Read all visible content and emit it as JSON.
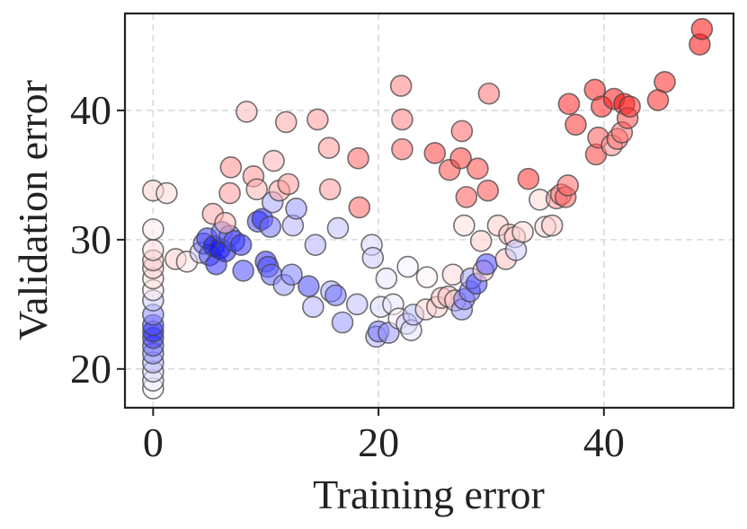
{
  "chart_data": {
    "type": "scatter",
    "title": "",
    "xlabel": "Training error",
    "ylabel": "Validation error",
    "xlim": [
      -2.5,
      51.5
    ],
    "ylim": [
      17,
      47.5
    ],
    "xticks": [
      0,
      20,
      40
    ],
    "yticks": [
      20,
      30,
      40
    ],
    "grid": true,
    "legend": "none",
    "color_scale": {
      "low": "#0000ff",
      "mid": "#ffffff",
      "high": "#ff0000"
    },
    "points": [
      {
        "x": 0,
        "y": 18.5,
        "c": -0.02
      },
      {
        "x": 0,
        "y": 19.1,
        "c": -0.08
      },
      {
        "x": 0,
        "y": 19.8,
        "c": -0.15
      },
      {
        "x": 0,
        "y": 20.5,
        "c": -0.28
      },
      {
        "x": 0,
        "y": 21.2,
        "c": -0.4
      },
      {
        "x": 0,
        "y": 21.8,
        "c": -0.55
      },
      {
        "x": 0,
        "y": 22.4,
        "c": -0.75
      },
      {
        "x": 0,
        "y": 22.9,
        "c": -0.85
      },
      {
        "x": 0,
        "y": 23.4,
        "c": -0.7
      },
      {
        "x": 0,
        "y": 24.2,
        "c": -0.45
      },
      {
        "x": 0,
        "y": 25.3,
        "c": -0.2
      },
      {
        "x": 0,
        "y": 26.1,
        "c": 0.08
      },
      {
        "x": 0,
        "y": 27.0,
        "c": 0.12
      },
      {
        "x": 0,
        "y": 27.8,
        "c": 0.16
      },
      {
        "x": 0,
        "y": 28.4,
        "c": 0.2
      },
      {
        "x": 0,
        "y": 29.2,
        "c": 0.14
      },
      {
        "x": 0,
        "y": 30.8,
        "c": 0.08
      },
      {
        "x": 0,
        "y": 33.8,
        "c": 0.18
      },
      {
        "x": 1.2,
        "y": 33.6,
        "c": 0.14
      },
      {
        "x": 2.0,
        "y": 28.5,
        "c": 0.2
      },
      {
        "x": 3.0,
        "y": 28.3,
        "c": 0.1
      },
      {
        "x": 4.2,
        "y": 29.0,
        "c": -0.2
      },
      {
        "x": 4.5,
        "y": 29.7,
        "c": -0.55
      },
      {
        "x": 4.8,
        "y": 30.1,
        "c": -0.75
      },
      {
        "x": 5.0,
        "y": 28.8,
        "c": -0.7
      },
      {
        "x": 5.4,
        "y": 29.5,
        "c": -0.9
      },
      {
        "x": 5.6,
        "y": 28.1,
        "c": -0.8
      },
      {
        "x": 5.9,
        "y": 29.3,
        "c": -0.95
      },
      {
        "x": 6.1,
        "y": 30.6,
        "c": -0.65
      },
      {
        "x": 6.4,
        "y": 29.1,
        "c": -0.85
      },
      {
        "x": 6.8,
        "y": 30.3,
        "c": -0.6
      },
      {
        "x": 7.2,
        "y": 29.9,
        "c": -0.7
      },
      {
        "x": 7.8,
        "y": 29.6,
        "c": -0.8
      },
      {
        "x": 8.0,
        "y": 27.6,
        "c": -0.7
      },
      {
        "x": 5.3,
        "y": 32.0,
        "c": 0.35
      },
      {
        "x": 6.4,
        "y": 31.3,
        "c": 0.3
      },
      {
        "x": 6.8,
        "y": 33.6,
        "c": 0.4
      },
      {
        "x": 6.9,
        "y": 35.6,
        "c": 0.45
      },
      {
        "x": 8.3,
        "y": 39.9,
        "c": 0.28
      },
      {
        "x": 8.9,
        "y": 34.9,
        "c": 0.42
      },
      {
        "x": 9.2,
        "y": 33.9,
        "c": 0.3
      },
      {
        "x": 9.3,
        "y": 31.4,
        "c": -0.7
      },
      {
        "x": 9.7,
        "y": 31.6,
        "c": -0.85
      },
      {
        "x": 10.0,
        "y": 28.3,
        "c": -0.8
      },
      {
        "x": 10.2,
        "y": 27.9,
        "c": -0.7
      },
      {
        "x": 10.4,
        "y": 31.0,
        "c": -0.55
      },
      {
        "x": 10.6,
        "y": 32.9,
        "c": -0.35
      },
      {
        "x": 10.5,
        "y": 27.3,
        "c": -0.6
      },
      {
        "x": 10.7,
        "y": 36.1,
        "c": 0.3
      },
      {
        "x": 11.2,
        "y": 33.8,
        "c": 0.35
      },
      {
        "x": 11.6,
        "y": 26.5,
        "c": -0.4
      },
      {
        "x": 11.8,
        "y": 39.1,
        "c": 0.35
      },
      {
        "x": 12.0,
        "y": 34.3,
        "c": 0.4
      },
      {
        "x": 12.3,
        "y": 27.3,
        "c": -0.5
      },
      {
        "x": 12.4,
        "y": 31.1,
        "c": -0.3
      },
      {
        "x": 12.7,
        "y": 32.4,
        "c": -0.4
      },
      {
        "x": 13.8,
        "y": 26.4,
        "c": -0.7
      },
      {
        "x": 14.2,
        "y": 24.8,
        "c": -0.3
      },
      {
        "x": 14.4,
        "y": 29.6,
        "c": -0.3
      },
      {
        "x": 14.6,
        "y": 39.3,
        "c": 0.4
      },
      {
        "x": 15.6,
        "y": 37.1,
        "c": 0.4
      },
      {
        "x": 15.7,
        "y": 33.9,
        "c": 0.4
      },
      {
        "x": 15.8,
        "y": 26.0,
        "c": -0.35
      },
      {
        "x": 16.2,
        "y": 25.7,
        "c": -0.55
      },
      {
        "x": 16.4,
        "y": 30.9,
        "c": -0.25
      },
      {
        "x": 16.8,
        "y": 23.6,
        "c": -0.4
      },
      {
        "x": 18.2,
        "y": 36.3,
        "c": 0.6
      },
      {
        "x": 18.3,
        "y": 32.5,
        "c": 0.6
      },
      {
        "x": 18.1,
        "y": 25.0,
        "c": -0.25
      },
      {
        "x": 19.4,
        "y": 29.6,
        "c": -0.15
      },
      {
        "x": 19.5,
        "y": 28.6,
        "c": -0.2
      },
      {
        "x": 19.8,
        "y": 22.5,
        "c": -0.3
      },
      {
        "x": 20.0,
        "y": 22.9,
        "c": -0.55
      },
      {
        "x": 20.2,
        "y": 24.8,
        "c": -0.15
      },
      {
        "x": 20.9,
        "y": 22.8,
        "c": -0.4
      },
      {
        "x": 20.7,
        "y": 27.0,
        "c": -0.1
      },
      {
        "x": 21.3,
        "y": 25.0,
        "c": -0.1
      },
      {
        "x": 21.8,
        "y": 23.9,
        "c": 0.05
      },
      {
        "x": 22.0,
        "y": 41.9,
        "c": 0.5
      },
      {
        "x": 22.1,
        "y": 39.3,
        "c": 0.5
      },
      {
        "x": 22.1,
        "y": 37.0,
        "c": 0.6
      },
      {
        "x": 22.5,
        "y": 23.5,
        "c": -0.2
      },
      {
        "x": 22.6,
        "y": 27.9,
        "c": -0.05
      },
      {
        "x": 22.9,
        "y": 23.0,
        "c": -0.1
      },
      {
        "x": 23.1,
        "y": 24.2,
        "c": -0.25
      },
      {
        "x": 24.3,
        "y": 27.1,
        "c": 0.05
      },
      {
        "x": 24.2,
        "y": 24.6,
        "c": 0.15
      },
      {
        "x": 25.0,
        "y": 36.7,
        "c": 0.75
      },
      {
        "x": 25.2,
        "y": 24.8,
        "c": 0.2
      },
      {
        "x": 25.6,
        "y": 25.5,
        "c": 0.2
      },
      {
        "x": 26.2,
        "y": 25.6,
        "c": 0.25
      },
      {
        "x": 26.3,
        "y": 35.4,
        "c": 0.7
      },
      {
        "x": 26.6,
        "y": 27.3,
        "c": 0.15
      },
      {
        "x": 26.8,
        "y": 25.3,
        "c": 0.2
      },
      {
        "x": 27.3,
        "y": 36.3,
        "c": 0.75
      },
      {
        "x": 27.4,
        "y": 38.4,
        "c": 0.6
      },
      {
        "x": 27.4,
        "y": 24.6,
        "c": -0.4
      },
      {
        "x": 27.6,
        "y": 25.4,
        "c": -0.5
      },
      {
        "x": 27.8,
        "y": 33.3,
        "c": 0.65
      },
      {
        "x": 27.6,
        "y": 31.1,
        "c": 0.12
      },
      {
        "x": 28.1,
        "y": 26.0,
        "c": -0.55
      },
      {
        "x": 28.2,
        "y": 27.0,
        "c": -0.35
      },
      {
        "x": 28.7,
        "y": 26.6,
        "c": -0.7
      },
      {
        "x": 28.8,
        "y": 35.5,
        "c": 0.7
      },
      {
        "x": 29.1,
        "y": 29.9,
        "c": 0.2
      },
      {
        "x": 29.3,
        "y": 27.6,
        "c": 0.2
      },
      {
        "x": 29.6,
        "y": 28.1,
        "c": -0.7
      },
      {
        "x": 29.7,
        "y": 33.8,
        "c": 0.7
      },
      {
        "x": 29.8,
        "y": 41.3,
        "c": 0.55
      },
      {
        "x": 30.6,
        "y": 31.1,
        "c": 0.2
      },
      {
        "x": 31.3,
        "y": 28.5,
        "c": 0.25
      },
      {
        "x": 31.6,
        "y": 30.4,
        "c": 0.25
      },
      {
        "x": 32.1,
        "y": 30.2,
        "c": 0.2
      },
      {
        "x": 32.2,
        "y": 29.2,
        "c": -0.2
      },
      {
        "x": 32.8,
        "y": 30.6,
        "c": 0.15
      },
      {
        "x": 33.3,
        "y": 34.7,
        "c": 0.8
      },
      {
        "x": 34.3,
        "y": 33.1,
        "c": 0.15
      },
      {
        "x": 34.8,
        "y": 31.0,
        "c": 0.15
      },
      {
        "x": 35.4,
        "y": 31.1,
        "c": 0.2
      },
      {
        "x": 35.8,
        "y": 33.2,
        "c": 0.4
      },
      {
        "x": 36.2,
        "y": 33.5,
        "c": 0.5
      },
      {
        "x": 36.6,
        "y": 33.3,
        "c": 0.6
      },
      {
        "x": 36.8,
        "y": 34.2,
        "c": 0.6
      },
      {
        "x": 36.9,
        "y": 40.5,
        "c": 0.85
      },
      {
        "x": 37.5,
        "y": 38.9,
        "c": 0.8
      },
      {
        "x": 39.2,
        "y": 41.6,
        "c": 0.85
      },
      {
        "x": 39.3,
        "y": 36.6,
        "c": 0.75
      },
      {
        "x": 39.5,
        "y": 37.9,
        "c": 0.65
      },
      {
        "x": 39.8,
        "y": 40.3,
        "c": 0.85
      },
      {
        "x": 40.7,
        "y": 37.3,
        "c": 0.45
      },
      {
        "x": 40.9,
        "y": 40.9,
        "c": 0.9
      },
      {
        "x": 41.2,
        "y": 37.8,
        "c": 0.55
      },
      {
        "x": 41.6,
        "y": 38.3,
        "c": 0.55
      },
      {
        "x": 41.8,
        "y": 40.5,
        "c": 0.95
      },
      {
        "x": 42.1,
        "y": 39.4,
        "c": 0.7
      },
      {
        "x": 42.3,
        "y": 40.3,
        "c": 0.8
      },
      {
        "x": 44.8,
        "y": 40.8,
        "c": 0.85
      },
      {
        "x": 45.4,
        "y": 42.2,
        "c": 0.85
      },
      {
        "x": 48.5,
        "y": 45.1,
        "c": 0.95
      },
      {
        "x": 48.7,
        "y": 46.3,
        "c": 0.95
      }
    ]
  }
}
